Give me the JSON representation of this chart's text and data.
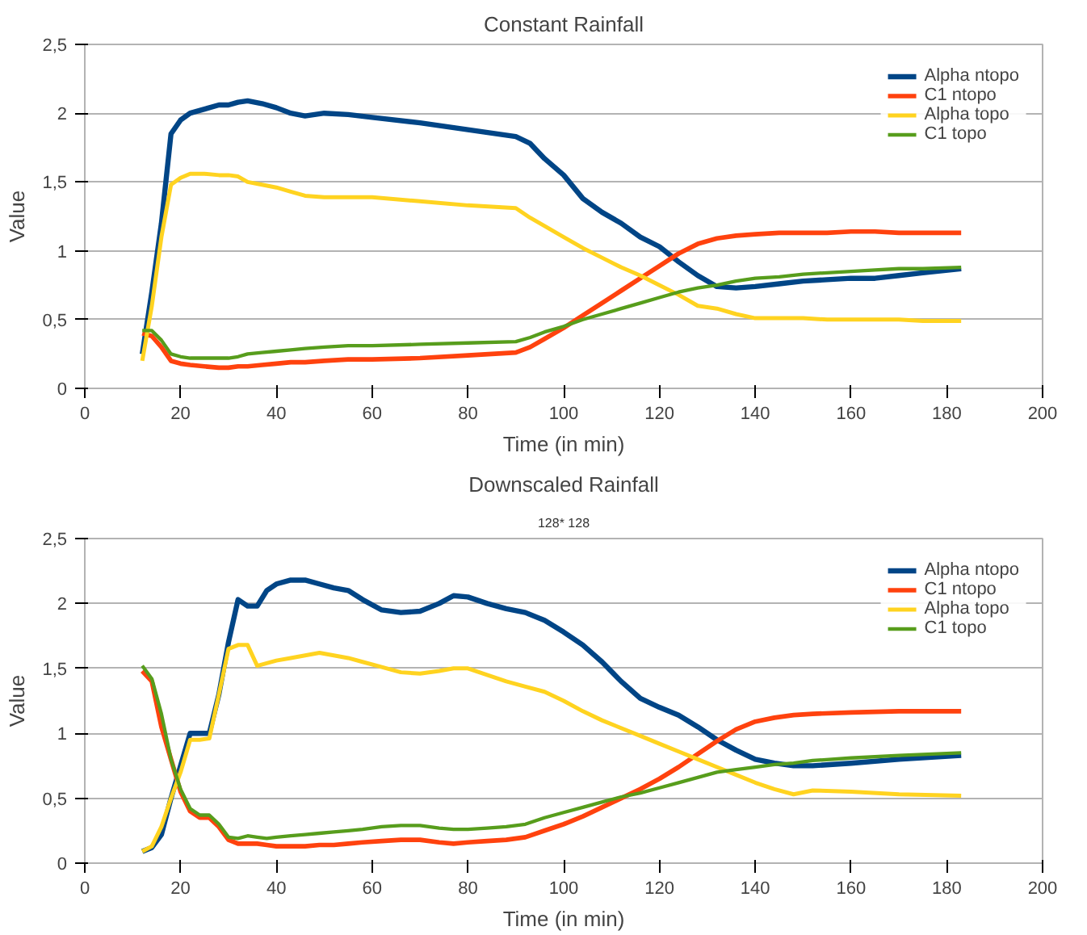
{
  "chart_data": [
    {
      "type": "line",
      "title": "Constant Rainfall",
      "xlabel": "Time (in min)",
      "ylabel": "Value",
      "x": [
        12,
        14,
        16,
        18,
        20,
        22,
        25,
        28,
        30,
        32,
        34,
        37,
        40,
        43,
        46,
        50,
        55,
        60,
        70,
        80,
        90,
        93,
        96,
        100,
        104,
        108,
        112,
        116,
        120,
        124,
        128,
        132,
        136,
        140,
        145,
        150,
        155,
        160,
        165,
        170,
        175,
        183
      ],
      "series": [
        {
          "name": "Alpha ntopo",
          "color": "#004586",
          "values": [
            0.25,
            0.7,
            1.2,
            1.85,
            1.95,
            2.0,
            2.03,
            2.06,
            2.06,
            2.08,
            2.09,
            2.07,
            2.04,
            2.0,
            1.98,
            2.0,
            1.99,
            1.97,
            1.93,
            1.88,
            1.83,
            1.78,
            1.67,
            1.55,
            1.38,
            1.28,
            1.2,
            1.1,
            1.03,
            0.92,
            0.82,
            0.74,
            0.73,
            0.74,
            0.76,
            0.78,
            0.79,
            0.8,
            0.8,
            0.82,
            0.84,
            0.87
          ]
        },
        {
          "name": "C1 ntopo",
          "color": "#ff420e",
          "values": [
            0.4,
            0.38,
            0.3,
            0.2,
            0.18,
            0.17,
            0.16,
            0.15,
            0.15,
            0.16,
            0.16,
            0.17,
            0.18,
            0.19,
            0.19,
            0.2,
            0.21,
            0.21,
            0.22,
            0.24,
            0.26,
            0.3,
            0.36,
            0.44,
            0.53,
            0.62,
            0.71,
            0.8,
            0.89,
            0.98,
            1.05,
            1.09,
            1.11,
            1.12,
            1.13,
            1.13,
            1.13,
            1.14,
            1.14,
            1.13,
            1.13,
            1.13
          ]
        },
        {
          "name": "Alpha topo",
          "color": "#ffd320",
          "values": [
            0.2,
            0.6,
            1.1,
            1.48,
            1.53,
            1.56,
            1.56,
            1.55,
            1.55,
            1.54,
            1.5,
            1.48,
            1.46,
            1.43,
            1.4,
            1.39,
            1.39,
            1.39,
            1.36,
            1.33,
            1.31,
            1.24,
            1.18,
            1.1,
            1.02,
            0.95,
            0.88,
            0.82,
            0.75,
            0.68,
            0.6,
            0.58,
            0.54,
            0.51,
            0.51,
            0.51,
            0.5,
            0.5,
            0.5,
            0.5,
            0.49,
            0.49
          ]
        },
        {
          "name": "C1 topo",
          "color": "#579d1c",
          "values": [
            0.42,
            0.42,
            0.35,
            0.25,
            0.23,
            0.22,
            0.22,
            0.22,
            0.22,
            0.23,
            0.25,
            0.26,
            0.27,
            0.28,
            0.29,
            0.3,
            0.31,
            0.31,
            0.32,
            0.33,
            0.34,
            0.37,
            0.41,
            0.45,
            0.5,
            0.54,
            0.58,
            0.62,
            0.66,
            0.7,
            0.73,
            0.75,
            0.78,
            0.8,
            0.81,
            0.83,
            0.84,
            0.85,
            0.86,
            0.87,
            0.87,
            0.88
          ]
        }
      ],
      "xlim": [
        0,
        200
      ],
      "xticks": [
        0,
        20,
        40,
        60,
        80,
        100,
        120,
        140,
        160,
        180,
        200
      ],
      "ylim": [
        0,
        2.5
      ],
      "yticks": [
        0,
        {
          "value": 0.5,
          "label": "0,5"
        },
        1,
        {
          "value": 1.5,
          "label": "1,5"
        },
        2,
        {
          "value": 2.5,
          "label": "2,5"
        }
      ],
      "grid": "y",
      "legend": "top right",
      "marker": "none",
      "line_style": "solid"
    },
    {
      "type": "line",
      "title": "Downscaled Rainfall",
      "subtitle": "128* 128",
      "xlabel": "Time (in min)",
      "ylabel": "Value",
      "x": [
        12,
        14,
        16,
        18,
        20,
        22,
        24,
        26,
        28,
        30,
        32,
        34,
        36,
        38,
        40,
        43,
        46,
        49,
        52,
        55,
        58,
        62,
        66,
        70,
        74,
        77,
        80,
        84,
        88,
        92,
        96,
        100,
        104,
        108,
        112,
        116,
        120,
        124,
        128,
        132,
        136,
        140,
        144,
        148,
        152,
        160,
        170,
        183
      ],
      "series": [
        {
          "name": "Alpha ntopo",
          "color": "#004586",
          "values": [
            0.09,
            0.12,
            0.22,
            0.5,
            0.75,
            1.0,
            1.0,
            1.0,
            1.3,
            1.7,
            2.03,
            1.98,
            1.98,
            2.1,
            2.15,
            2.18,
            2.18,
            2.15,
            2.12,
            2.1,
            2.03,
            1.95,
            1.93,
            1.94,
            2.0,
            2.06,
            2.05,
            2.0,
            1.96,
            1.93,
            1.87,
            1.78,
            1.68,
            1.55,
            1.4,
            1.27,
            1.2,
            1.14,
            1.05,
            0.95,
            0.87,
            0.8,
            0.77,
            0.75,
            0.75,
            0.77,
            0.8,
            0.83
          ]
        },
        {
          "name": "C1 ntopo",
          "color": "#ff420e",
          "values": [
            1.48,
            1.4,
            1.05,
            0.8,
            0.55,
            0.4,
            0.35,
            0.35,
            0.28,
            0.18,
            0.15,
            0.15,
            0.15,
            0.14,
            0.13,
            0.13,
            0.13,
            0.14,
            0.14,
            0.15,
            0.16,
            0.17,
            0.18,
            0.18,
            0.16,
            0.15,
            0.16,
            0.17,
            0.18,
            0.2,
            0.25,
            0.3,
            0.36,
            0.43,
            0.5,
            0.57,
            0.65,
            0.74,
            0.84,
            0.94,
            1.03,
            1.09,
            1.12,
            1.14,
            1.15,
            1.16,
            1.17,
            1.17
          ]
        },
        {
          "name": "Alpha topo",
          "color": "#ffd320",
          "values": [
            0.09,
            0.13,
            0.28,
            0.5,
            0.7,
            0.95,
            0.95,
            0.96,
            1.3,
            1.65,
            1.68,
            1.68,
            1.52,
            1.54,
            1.56,
            1.58,
            1.6,
            1.62,
            1.6,
            1.58,
            1.55,
            1.51,
            1.47,
            1.46,
            1.48,
            1.5,
            1.5,
            1.45,
            1.4,
            1.36,
            1.32,
            1.25,
            1.17,
            1.1,
            1.04,
            0.98,
            0.92,
            0.86,
            0.8,
            0.74,
            0.68,
            0.62,
            0.57,
            0.53,
            0.56,
            0.55,
            0.53,
            0.52
          ]
        },
        {
          "name": "C1 topo",
          "color": "#579d1c",
          "values": [
            1.52,
            1.42,
            1.15,
            0.8,
            0.57,
            0.42,
            0.37,
            0.37,
            0.3,
            0.2,
            0.19,
            0.21,
            0.2,
            0.19,
            0.2,
            0.21,
            0.22,
            0.23,
            0.24,
            0.25,
            0.26,
            0.28,
            0.29,
            0.29,
            0.27,
            0.26,
            0.26,
            0.27,
            0.28,
            0.3,
            0.35,
            0.39,
            0.43,
            0.47,
            0.51,
            0.54,
            0.58,
            0.62,
            0.66,
            0.7,
            0.72,
            0.74,
            0.76,
            0.77,
            0.79,
            0.81,
            0.83,
            0.85
          ]
        }
      ],
      "xlim": [
        0,
        200
      ],
      "xticks": [
        0,
        20,
        40,
        60,
        80,
        100,
        120,
        140,
        160,
        180,
        200
      ],
      "ylim": [
        0,
        2.5
      ],
      "yticks": [
        0,
        {
          "value": 0.5,
          "label": "0,5"
        },
        1,
        {
          "value": 1.5,
          "label": "1,5"
        },
        2,
        {
          "value": 2.5,
          "label": "2,5"
        }
      ],
      "grid": "y",
      "legend": "top right",
      "marker": "none",
      "line_style": "solid"
    }
  ]
}
